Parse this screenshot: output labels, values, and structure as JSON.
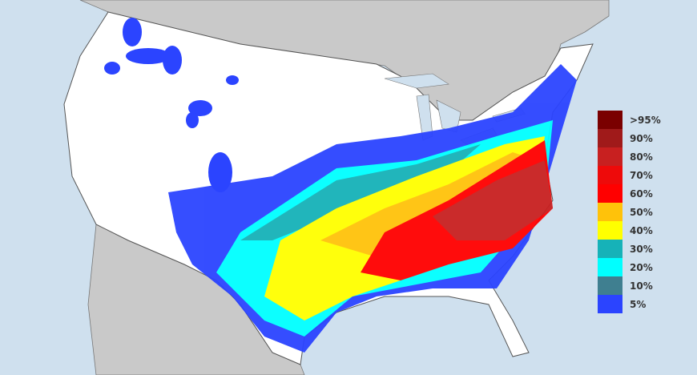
{
  "map": {
    "colors": {
      "water": "#cfe0ee",
      "land_other": "#c9c9c9",
      "land_us": "#ffffff",
      "borders": "#555555"
    }
  },
  "legend": {
    "items": [
      {
        "label": ">95%",
        "color": "#7a0000"
      },
      {
        "label": "90%",
        "color": "#a01a1a"
      },
      {
        "label": "80%",
        "color": "#c82020"
      },
      {
        "label": "70%",
        "color": "#ee0a0a"
      },
      {
        "label": "60%",
        "color": "#ff0000"
      },
      {
        "label": "50%",
        "color": "#ffc20a"
      },
      {
        "label": "40%",
        "color": "#ffff00"
      },
      {
        "label": "30%",
        "color": "#16b2b8"
      },
      {
        "label": "20%",
        "color": "#00ffff"
      },
      {
        "label": "10%",
        "color": "#3f7f90"
      },
      {
        "label": "5%",
        "color": "#2b44ff"
      }
    ]
  }
}
